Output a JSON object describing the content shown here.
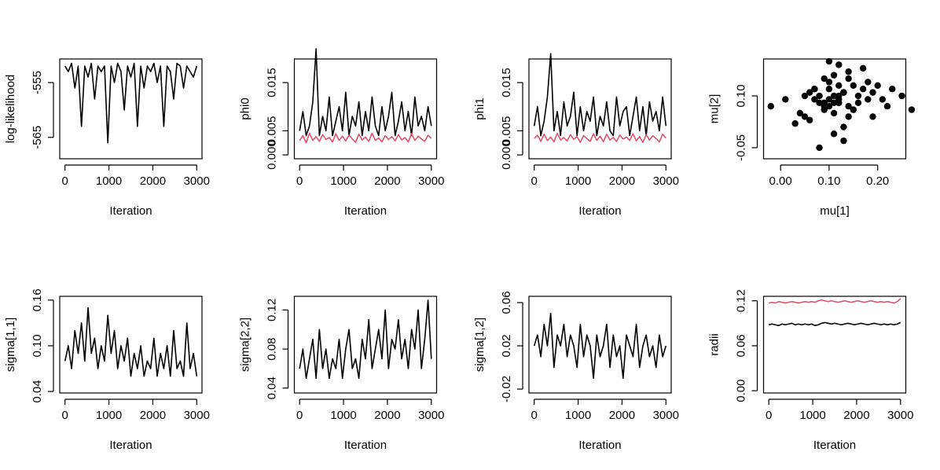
{
  "chart_data": [
    {
      "type": "line",
      "ylabel": "log-likelihood",
      "xlabel": "Iteration",
      "xlim": [
        -120,
        3120
      ],
      "ylim": [
        -568.9,
        -550.7
      ],
      "xticks": [
        0,
        1000,
        2000,
        3000
      ],
      "yticks": [
        -565,
        -555
      ],
      "x": [
        0,
        75,
        150,
        225,
        300,
        375,
        450,
        525,
        600,
        675,
        750,
        825,
        900,
        975,
        1050,
        1125,
        1200,
        1275,
        1350,
        1425,
        1500,
        1575,
        1650,
        1725,
        1800,
        1875,
        1950,
        2025,
        2100,
        2175,
        2250,
        2325,
        2400,
        2475,
        2550,
        2625,
        2700,
        2775,
        2850,
        2925,
        3000
      ],
      "series": [
        {
          "color": "#000000",
          "values": [
            -552,
            -553,
            -551.5,
            -556,
            -552,
            -563,
            -552,
            -554,
            -551.5,
            -558,
            -552,
            -553,
            -552,
            -566,
            -552,
            -555,
            -551.5,
            -553,
            -560,
            -552,
            -554,
            -551.5,
            -563,
            -552,
            -556,
            -552,
            -553,
            -551.5,
            -555,
            -552,
            -563,
            -552,
            -553,
            -558,
            -551.5,
            -552,
            -556,
            -552,
            -553,
            -554,
            -552
          ]
        }
      ]
    },
    {
      "type": "line",
      "ylabel": "phi0",
      "xlabel": "Iteration",
      "xlim": [
        -120,
        3120
      ],
      "ylim": [
        -0.0008,
        0.0199
      ],
      "xticks": [
        0,
        1000,
        2000,
        3000
      ],
      "yticks": [
        {
          "value": 0,
          "label": "0.000"
        },
        0.005,
        0.015
      ],
      "x": [
        0,
        75,
        150,
        225,
        300,
        375,
        450,
        525,
        600,
        675,
        750,
        825,
        900,
        975,
        1050,
        1125,
        1200,
        1275,
        1350,
        1425,
        1500,
        1575,
        1650,
        1725,
        1800,
        1875,
        1950,
        2025,
        2100,
        2175,
        2250,
        2325,
        2400,
        2475,
        2550,
        2625,
        2700,
        2775,
        2850,
        2925,
        3000
      ],
      "series": [
        {
          "color": "#000000",
          "values": [
            0.005,
            0.009,
            0.004,
            0.006,
            0.011,
            0.022,
            0.004,
            0.008,
            0.005,
            0.012,
            0.004,
            0.007,
            0.01,
            0.005,
            0.013,
            0.004,
            0.008,
            0.006,
            0.011,
            0.004,
            0.009,
            0.005,
            0.012,
            0.006,
            0.004,
            0.01,
            0.005,
            0.008,
            0.013,
            0.004,
            0.007,
            0.011,
            0.005,
            0.009,
            0.004,
            0.012,
            0.006,
            0.008,
            0.005,
            0.01,
            0.006
          ]
        },
        {
          "color": "#DF536B",
          "values": [
            0.003,
            0.004,
            0.0025,
            0.0045,
            0.003,
            0.0038,
            0.0028,
            0.0042,
            0.0032,
            0.0036,
            0.0027,
            0.0044,
            0.003,
            0.0039,
            0.0029,
            0.0041,
            0.0033,
            0.0026,
            0.0043,
            0.0031,
            0.0037,
            0.0028,
            0.0045,
            0.003,
            0.0035,
            0.0027,
            0.004,
            0.0032,
            0.0038,
            0.0029,
            0.0042,
            0.0031,
            0.0036,
            0.0027,
            0.0044,
            0.003,
            0.0039,
            0.0033,
            0.0028,
            0.0041,
            0.0034
          ]
        }
      ]
    },
    {
      "type": "line",
      "ylabel": "phi1",
      "xlabel": "Iteration",
      "xlim": [
        -120,
        3120
      ],
      "ylim": [
        -0.0008,
        0.0199
      ],
      "xticks": [
        0,
        1000,
        2000,
        3000
      ],
      "yticks": [
        {
          "value": 0,
          "label": "0.000"
        },
        0.005,
        0.015
      ],
      "x": [
        0,
        75,
        150,
        225,
        300,
        375,
        450,
        525,
        600,
        675,
        750,
        825,
        900,
        975,
        1050,
        1125,
        1200,
        1275,
        1350,
        1425,
        1500,
        1575,
        1650,
        1725,
        1800,
        1875,
        1950,
        2025,
        2100,
        2175,
        2250,
        2325,
        2400,
        2475,
        2550,
        2625,
        2700,
        2775,
        2850,
        2925,
        3000
      ],
      "series": [
        {
          "color": "#000000",
          "values": [
            0.006,
            0.01,
            0.004,
            0.007,
            0.012,
            0.021,
            0.005,
            0.009,
            0.004,
            0.011,
            0.006,
            0.008,
            0.013,
            0.004,
            0.01,
            0.005,
            0.009,
            0.007,
            0.012,
            0.004,
            0.008,
            0.006,
            0.011,
            0.005,
            0.004,
            0.012,
            0.006,
            0.009,
            0.01,
            0.004,
            0.008,
            0.012,
            0.005,
            0.01,
            0.004,
            0.011,
            0.007,
            0.009,
            0.005,
            0.012,
            0.006
          ]
        },
        {
          "color": "#DF536B",
          "values": [
            0.0034,
            0.0041,
            0.0028,
            0.0043,
            0.003,
            0.0037,
            0.0027,
            0.0045,
            0.0031,
            0.0036,
            0.0029,
            0.0042,
            0.0032,
            0.0038,
            0.0026,
            0.004,
            0.0034,
            0.0028,
            0.0044,
            0.003,
            0.0039,
            0.0027,
            0.0043,
            0.0031,
            0.0036,
            0.0028,
            0.0041,
            0.0033,
            0.0037,
            0.003,
            0.0044,
            0.0029,
            0.0038,
            0.0026,
            0.0042,
            0.0031,
            0.004,
            0.0034,
            0.0027,
            0.0043,
            0.0035
          ]
        }
      ]
    },
    {
      "type": "scatter",
      "ylabel": "mu[2]",
      "xlabel": "mu[1]",
      "color": "#000000",
      "xlim": [
        -0.035,
        0.258
      ],
      "ylim": [
        -0.082,
        0.207
      ],
      "xticks": [
        {
          "value": 0,
          "label": "0.00"
        },
        {
          "value": 0.1,
          "label": "0.10"
        },
        {
          "value": 0.2,
          "label": "0.20"
        }
      ],
      "yticks": [
        -0.05,
        {
          "value": 0.1,
          "label": "0.10"
        }
      ],
      "x": [
        0.12,
        0.08,
        0.15,
        0.1,
        0.18,
        0.05,
        0.13,
        0.09,
        0.2,
        0.11,
        0.07,
        0.14,
        0.16,
        0.03,
        0.12,
        0.1,
        0.22,
        0.06,
        0.13,
        0.17,
        0.09,
        0.25,
        0.11,
        0.08,
        0.14,
        0.01,
        0.19,
        0.12,
        0.1,
        0.15,
        0.04,
        0.13,
        0.21,
        0.07,
        0.11,
        0.16,
        0.09,
        0.27,
        0.12,
        0.14,
        0.06,
        0.18,
        0.1,
        0.13,
        -0.02,
        0.15,
        0.08,
        0.11,
        0.23,
        0.12,
        0.09,
        0.17,
        0.05,
        0.14,
        0.1,
        0.12,
        0.19,
        0.07,
        0.13,
        0.11
      ],
      "values": [
        0.08,
        0.1,
        0.06,
        0.12,
        0.09,
        0.04,
        0.11,
        0.07,
        0.13,
        0.05,
        0.09,
        0.15,
        0.08,
        0.02,
        0.1,
        0.14,
        0.07,
        0.11,
        -0.03,
        0.12,
        0.06,
        0.1,
        0.16,
        0.08,
        0.04,
        0.09,
        0.11,
        0.19,
        0.07,
        0.13,
        0.05,
        0.01,
        0.09,
        0.12,
        -0.01,
        0.1,
        0.15,
        0.06,
        0.08,
        0.17,
        0.03,
        0.14,
        0.09,
        0.11,
        0.07,
        0.06,
        -0.05,
        0.1,
        0.12,
        0.13,
        0.08,
        0.18,
        0.1,
        0.07,
        0.2,
        0.09,
        0.04,
        0.12,
        0.11,
        0.08
      ]
    },
    {
      "type": "line",
      "ylabel": "sigma[1,1]",
      "xlabel": "Iteration",
      "xlim": [
        -120,
        3120
      ],
      "ylim": [
        0.038,
        0.165
      ],
      "xticks": [
        0,
        1000,
        2000,
        3000
      ],
      "yticks": [
        0.04,
        {
          "value": 0.1,
          "label": "0.10"
        },
        0.16
      ],
      "x": [
        0,
        75,
        150,
        225,
        300,
        375,
        450,
        525,
        600,
        675,
        750,
        825,
        900,
        975,
        1050,
        1125,
        1200,
        1275,
        1350,
        1425,
        1500,
        1575,
        1650,
        1725,
        1800,
        1875,
        1950,
        2025,
        2100,
        2175,
        2250,
        2325,
        2400,
        2475,
        2550,
        2625,
        2700,
        2775,
        2850,
        2925,
        3000
      ],
      "series": [
        {
          "color": "#000000",
          "values": [
            0.08,
            0.1,
            0.07,
            0.12,
            0.09,
            0.13,
            0.08,
            0.15,
            0.09,
            0.11,
            0.07,
            0.1,
            0.08,
            0.14,
            0.09,
            0.12,
            0.07,
            0.1,
            0.08,
            0.11,
            0.06,
            0.09,
            0.07,
            0.1,
            0.06,
            0.08,
            0.07,
            0.11,
            0.06,
            0.09,
            0.07,
            0.1,
            0.06,
            0.12,
            0.07,
            0.08,
            0.06,
            0.13,
            0.07,
            0.09,
            0.06
          ]
        }
      ]
    },
    {
      "type": "line",
      "ylabel": "sigma[2,2]",
      "xlabel": "Iteration",
      "xlim": [
        -120,
        3120
      ],
      "ylim": [
        0.035,
        0.134
      ],
      "xticks": [
        0,
        1000,
        2000,
        3000
      ],
      "yticks": [
        0.04,
        0.08,
        0.12
      ],
      "x": [
        0,
        75,
        150,
        225,
        300,
        375,
        450,
        525,
        600,
        675,
        750,
        825,
        900,
        975,
        1050,
        1125,
        1200,
        1275,
        1350,
        1425,
        1500,
        1575,
        1650,
        1725,
        1800,
        1875,
        1950,
        2025,
        2100,
        2175,
        2250,
        2325,
        2400,
        2475,
        2550,
        2625,
        2700,
        2775,
        2850,
        2925,
        3000
      ],
      "series": [
        {
          "color": "#000000",
          "values": [
            0.06,
            0.08,
            0.05,
            0.07,
            0.09,
            0.05,
            0.1,
            0.06,
            0.08,
            0.05,
            0.07,
            0.06,
            0.09,
            0.05,
            0.08,
            0.1,
            0.06,
            0.07,
            0.05,
            0.09,
            0.07,
            0.11,
            0.06,
            0.08,
            0.1,
            0.07,
            0.12,
            0.06,
            0.09,
            0.08,
            0.11,
            0.07,
            0.09,
            0.06,
            0.1,
            0.08,
            0.12,
            0.06,
            0.09,
            0.13,
            0.07
          ]
        }
      ]
    },
    {
      "type": "line",
      "ylabel": "sigma[1,2]",
      "xlabel": "Iteration",
      "xlim": [
        -120,
        3120
      ],
      "ylim": [
        -0.0236,
        0.0658
      ],
      "xticks": [
        0,
        1000,
        2000,
        3000
      ],
      "yticks": [
        -0.02,
        0.02,
        0.06
      ],
      "x": [
        0,
        75,
        150,
        225,
        300,
        375,
        450,
        525,
        600,
        675,
        750,
        825,
        900,
        975,
        1050,
        1125,
        1200,
        1275,
        1350,
        1425,
        1500,
        1575,
        1650,
        1725,
        1800,
        1875,
        1950,
        2025,
        2100,
        2175,
        2250,
        2325,
        2400,
        2475,
        2550,
        2625,
        2700,
        2775,
        2850,
        2925,
        3000
      ],
      "series": [
        {
          "color": "#000000",
          "values": [
            0.02,
            0.03,
            0.01,
            0.04,
            0.02,
            0.05,
            0.0,
            0.03,
            0.02,
            0.04,
            0.01,
            0.03,
            0.02,
            0.0,
            0.04,
            0.01,
            0.03,
            0.02,
            -0.01,
            0.03,
            0.01,
            0.02,
            0.04,
            0.0,
            0.03,
            0.01,
            0.02,
            -0.01,
            0.03,
            0.02,
            0.01,
            0.04,
            0.0,
            0.02,
            0.03,
            0.01,
            0.02,
            0.0,
            0.03,
            0.01,
            0.02
          ]
        }
      ]
    },
    {
      "type": "line",
      "ylabel": "radii",
      "xlabel": "Iteration",
      "xlim": [
        -120,
        3120
      ],
      "ylim": [
        -0.003,
        0.126
      ],
      "xticks": [
        0,
        1000,
        2000,
        3000
      ],
      "yticks": [
        {
          "value": 0,
          "label": "0.00"
        },
        0.06,
        {
          "value": 0.12,
          "label": "0.12"
        }
      ],
      "x": [
        0,
        75,
        150,
        225,
        300,
        375,
        450,
        525,
        600,
        675,
        750,
        825,
        900,
        975,
        1050,
        1125,
        1200,
        1275,
        1350,
        1425,
        1500,
        1575,
        1650,
        1725,
        1800,
        1875,
        1950,
        2025,
        2100,
        2175,
        2250,
        2325,
        2400,
        2475,
        2550,
        2625,
        2700,
        2775,
        2850,
        2925,
        3000
      ],
      "series": [
        {
          "color": "#000000",
          "values": [
            0.088,
            0.089,
            0.088,
            0.087,
            0.089,
            0.088,
            0.089,
            0.09,
            0.088,
            0.089,
            0.088,
            0.089,
            0.088,
            0.089,
            0.087,
            0.088,
            0.09,
            0.091,
            0.09,
            0.089,
            0.09,
            0.089,
            0.088,
            0.089,
            0.09,
            0.089,
            0.088,
            0.089,
            0.09,
            0.089,
            0.088,
            0.089,
            0.09,
            0.089,
            0.088,
            0.089,
            0.088,
            0.089,
            0.088,
            0.089,
            0.091
          ]
        },
        {
          "color": "#DF536B",
          "values": [
            0.117,
            0.118,
            0.117,
            0.119,
            0.118,
            0.117,
            0.118,
            0.119,
            0.118,
            0.117,
            0.118,
            0.119,
            0.118,
            0.119,
            0.118,
            0.12,
            0.121,
            0.12,
            0.119,
            0.12,
            0.119,
            0.118,
            0.119,
            0.12,
            0.119,
            0.118,
            0.119,
            0.12,
            0.119,
            0.118,
            0.119,
            0.12,
            0.119,
            0.118,
            0.119,
            0.118,
            0.119,
            0.118,
            0.117,
            0.119,
            0.123
          ]
        }
      ]
    }
  ]
}
